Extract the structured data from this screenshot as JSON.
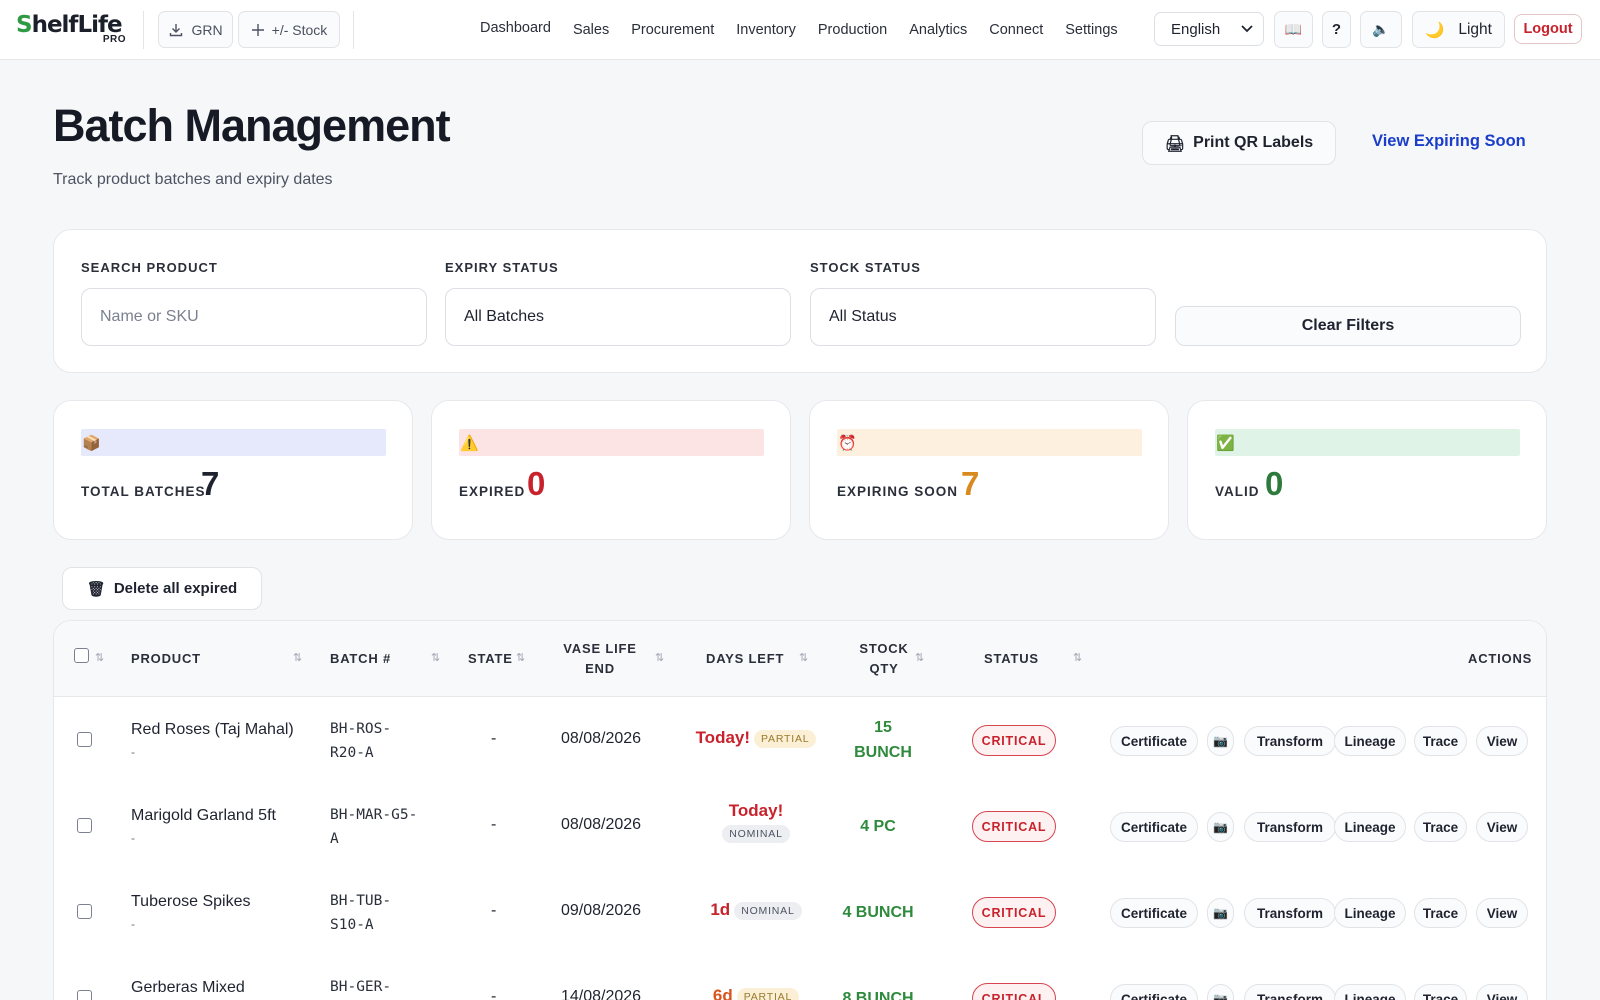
{
  "app": {
    "logo_main": "helfLife",
    "logo_s": "S",
    "logo_pro": "PRO"
  },
  "topbar": {
    "grn_label": "GRN",
    "stock_label": "+/- Stock",
    "nav": [
      "Dashboard",
      "Sales",
      "Procurement",
      "Inventory",
      "Production",
      "Analytics",
      "Connect",
      "Settings"
    ],
    "language": "English",
    "help_label": "?",
    "theme_label": "Light",
    "logout_label": "Logout"
  },
  "header": {
    "title": "Batch Management",
    "subtitle": "Track product batches and expiry dates",
    "print_label": "Print QR Labels",
    "expiring_link": "View Expiring Soon"
  },
  "filters": {
    "search_label": "SEARCH PRODUCT",
    "search_placeholder": "Name or SKU",
    "expiry_label": "EXPIRY STATUS",
    "expiry_value": "All Batches",
    "stock_label": "STOCK STATUS",
    "stock_value": "All Status",
    "clear_label": "Clear Filters"
  },
  "stats": [
    {
      "label": "TOTAL BATCHES",
      "value": "7",
      "icon": "package-icon",
      "bar_color": "#e6e8fb",
      "value_color": "#1f2330"
    },
    {
      "label": "EXPIRED",
      "value": "0",
      "icon": "warning-icon",
      "bar_color": "#fde4e4",
      "value_color": "#c8232c"
    },
    {
      "label": "EXPIRING SOON",
      "value": "7",
      "icon": "alarm-clock-icon",
      "bar_color": "#fdf0df",
      "value_color": "#d98a1e"
    },
    {
      "label": "VALID",
      "value": "0",
      "icon": "check-mark-icon",
      "bar_color": "#dff4e6",
      "value_color": "#2e7a3c"
    }
  ],
  "actions": {
    "delete_expired_label": "Delete all expired"
  },
  "table": {
    "columns": {
      "product": "PRODUCT",
      "batch": "BATCH #",
      "state": "STATE",
      "vase_life_1": "VASE LIFE",
      "vase_life_2": "END",
      "days_left": "DAYS LEFT",
      "stock_qty_1": "STOCK",
      "stock_qty_2": "QTY",
      "status": "STATUS",
      "actions": "ACTIONS"
    },
    "rows": [
      {
        "product": "Red Roses (Taj Mahal)",
        "sub": "-",
        "batch_1": "BH-ROS-",
        "batch_2": "R20-A",
        "state": "-",
        "vase_end": "08/08/2026",
        "days": "Today!",
        "tag": "PARTIAL",
        "qty_1": "15",
        "qty_2": "BUNCH",
        "status": "CRITICAL"
      },
      {
        "product": "Marigold Garland 5ft",
        "sub": "-",
        "batch_1": "BH-MAR-G5-",
        "batch_2": "A",
        "state": "-",
        "vase_end": "08/08/2026",
        "days": "Today!",
        "tag": "NOMINAL",
        "qty_1": "4 PC",
        "qty_2": "",
        "status": "CRITICAL"
      },
      {
        "product": "Tuberose Spikes",
        "sub": "-",
        "batch_1": "BH-TUB-",
        "batch_2": "S10-A",
        "state": "-",
        "vase_end": "09/08/2026",
        "days": "1d",
        "tag": "NOMINAL",
        "qty_1": "4 BUNCH",
        "qty_2": "",
        "status": "CRITICAL"
      },
      {
        "product": "Gerberas Mixed",
        "sub": "-",
        "batch_1": "BH-GER-",
        "batch_2": "",
        "state": "-",
        "vase_end": "14/08/2026",
        "days": "6d",
        "tag": "PARTIAL",
        "qty_1": "8 BUNCH",
        "qty_2": "",
        "status": "CRITICAL"
      }
    ],
    "row_actions": {
      "certificate": "Certificate",
      "transform": "Transform",
      "lineage": "Lineage",
      "trace": "Trace",
      "view": "View"
    }
  }
}
